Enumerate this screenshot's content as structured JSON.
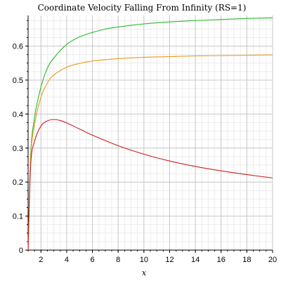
{
  "chart_data": {
    "type": "line",
    "title": "Coordinate Velocity Falling From Infinity (RS=1)",
    "xlabel": "x",
    "ylabel": "",
    "xlim": [
      1,
      20
    ],
    "ylim": [
      0,
      0.69
    ],
    "x_ticks": [
      2,
      4,
      6,
      8,
      10,
      12,
      14,
      16,
      18,
      20
    ],
    "y_ticks": [
      0,
      0.1,
      0.2,
      0.3,
      0.4,
      0.5,
      0.6
    ],
    "x_tick_labels": [
      "2",
      "4",
      "6",
      "8",
      "10",
      "12",
      "14",
      "16",
      "18",
      "20"
    ],
    "y_tick_labels": [
      "0",
      "0.1",
      "0.2",
      "0.3",
      "0.4",
      "0.5",
      "0.6"
    ],
    "grid": true,
    "legend": "none",
    "series": [
      {
        "color": "#2eb82e",
        "x": [
          1.0,
          1.2,
          1.5,
          2.0,
          2.5,
          3.0,
          4.0,
          5.0,
          6.0,
          7.0,
          8.0,
          10.0,
          12.0,
          14.0,
          16.0,
          18.0,
          20.0
        ],
        "y": [
          0.0,
          0.28,
          0.39,
          0.48,
          0.535,
          0.565,
          0.605,
          0.627,
          0.64,
          0.65,
          0.656,
          0.665,
          0.671,
          0.675,
          0.678,
          0.681,
          0.683
        ]
      },
      {
        "color": "#e89a1a",
        "x": [
          1.0,
          1.2,
          1.5,
          2.0,
          2.5,
          3.0,
          4.0,
          5.0,
          6.0,
          7.0,
          8.0,
          10.0,
          12.0,
          14.0,
          16.0,
          18.0,
          20.0
        ],
        "y": [
          0.0,
          0.27,
          0.37,
          0.45,
          0.492,
          0.515,
          0.538,
          0.549,
          0.556,
          0.56,
          0.563,
          0.567,
          0.569,
          0.571,
          0.572,
          0.573,
          0.574
        ]
      },
      {
        "color": "#cc1f1f",
        "x": [
          1.0,
          1.2,
          1.5,
          2.0,
          2.5,
          3.0,
          3.5,
          4.0,
          5.0,
          6.0,
          8.0,
          10.0,
          12.0,
          14.0,
          16.0,
          18.0,
          20.0
        ],
        "y": [
          0.0,
          0.25,
          0.32,
          0.365,
          0.38,
          0.384,
          0.381,
          0.374,
          0.356,
          0.338,
          0.307,
          0.282,
          0.262,
          0.246,
          0.233,
          0.222,
          0.212
        ]
      }
    ]
  }
}
